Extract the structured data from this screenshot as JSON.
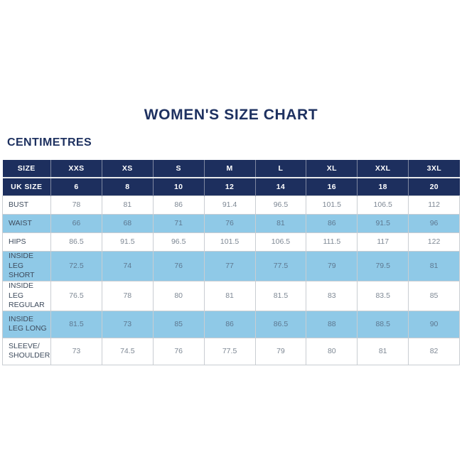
{
  "page": {
    "title": "WOMEN'S SIZE CHART",
    "units_label": "CENTIMETRES"
  },
  "colors": {
    "navy_header": "#1d2f5e",
    "title_text": "#1e3160",
    "highlight_blue": "#8fc9e7",
    "cell_border": "#c9cdd2",
    "label_text": "#3e4b5c",
    "value_text": "#7e8894",
    "header_text": "#ffffff"
  },
  "chart_data": {
    "type": "table",
    "title": "WOMEN'S SIZE CHART",
    "units": "CENTIMETRES",
    "header_row": [
      "SIZE",
      "XXS",
      "XS",
      "S",
      "M",
      "L",
      "XL",
      "XXL",
      "3XL"
    ],
    "uk_size_row": [
      "UK SIZE",
      "6",
      "8",
      "10",
      "12",
      "14",
      "16",
      "18",
      "20"
    ],
    "rows": [
      {
        "label": "BUST",
        "highlight": false,
        "values": [
          "78",
          "81",
          "86",
          "91.4",
          "96.5",
          "101.5",
          "106.5",
          "112"
        ]
      },
      {
        "label": "WAIST",
        "highlight": true,
        "values": [
          "66",
          "68",
          "71",
          "76",
          "81",
          "86",
          "91.5",
          "96"
        ]
      },
      {
        "label": "HIPS",
        "highlight": false,
        "values": [
          "86.5",
          "91.5",
          "96.5",
          "101.5",
          "106.5",
          "111.5",
          "117",
          "122"
        ]
      },
      {
        "label": "INSIDE LEG SHORT",
        "highlight": true,
        "values": [
          "72.5",
          "74",
          "76",
          "77",
          "77.5",
          "79",
          "79.5",
          "81"
        ]
      },
      {
        "label": "INSIDE LEG REGULAR",
        "highlight": false,
        "values": [
          "76.5",
          "78",
          "80",
          "81",
          "81.5",
          "83",
          "83.5",
          "85"
        ]
      },
      {
        "label": "INSIDE LEG LONG",
        "highlight": true,
        "values": [
          "81.5",
          "73",
          "85",
          "86",
          "86.5",
          "88",
          "88.5",
          "90"
        ]
      },
      {
        "label": "SLEEVE/ SHOULDER",
        "highlight": false,
        "values": [
          "73",
          "74.5",
          "76",
          "77.5",
          "79",
          "80",
          "81",
          "82"
        ]
      }
    ]
  }
}
